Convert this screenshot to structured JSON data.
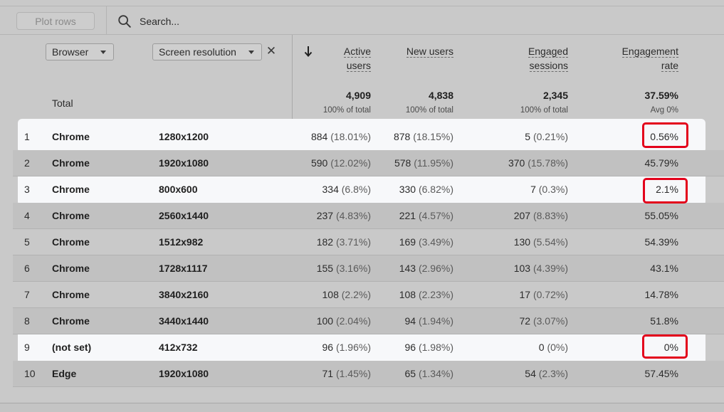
{
  "toolbar": {
    "plot_rows_label": "Plot rows",
    "search_placeholder": "Search..."
  },
  "dimensions": {
    "primary": "Browser",
    "secondary": "Screen resolution",
    "remove_icon": "close-icon"
  },
  "metrics_headers": {
    "active_users": [
      "Active",
      "users"
    ],
    "new_users": [
      "New users"
    ],
    "engaged_sessions": [
      "Engaged",
      "sessions"
    ],
    "engagement_rate": [
      "Engagement",
      "rate"
    ]
  },
  "totals": {
    "label": "Total",
    "active_users": "4,909",
    "active_users_sub": "100% of total",
    "new_users": "4,838",
    "new_users_sub": "100% of total",
    "engaged_sessions": "2,345",
    "engaged_sessions_sub": "100% of total",
    "engagement_rate": "37.59%",
    "engagement_rate_sub": "Avg 0%"
  },
  "rows": [
    {
      "idx": "1",
      "browser": "Chrome",
      "res": "1280x1200",
      "au": "884",
      "au_pct": "(18.01%)",
      "nu": "878",
      "nu_pct": "(18.15%)",
      "es": "5",
      "es_pct": "(0.21%)",
      "er": "0.56%"
    },
    {
      "idx": "2",
      "browser": "Chrome",
      "res": "1920x1080",
      "au": "590",
      "au_pct": "(12.02%)",
      "nu": "578",
      "nu_pct": "(11.95%)",
      "es": "370",
      "es_pct": "(15.78%)",
      "er": "45.79%"
    },
    {
      "idx": "3",
      "browser": "Chrome",
      "res": "800x600",
      "au": "334",
      "au_pct": "(6.8%)",
      "nu": "330",
      "nu_pct": "(6.82%)",
      "es": "7",
      "es_pct": "(0.3%)",
      "er": "2.1%"
    },
    {
      "idx": "4",
      "browser": "Chrome",
      "res": "2560x1440",
      "au": "237",
      "au_pct": "(4.83%)",
      "nu": "221",
      "nu_pct": "(4.57%)",
      "es": "207",
      "es_pct": "(8.83%)",
      "er": "55.05%"
    },
    {
      "idx": "5",
      "browser": "Chrome",
      "res": "1512x982",
      "au": "182",
      "au_pct": "(3.71%)",
      "nu": "169",
      "nu_pct": "(3.49%)",
      "es": "130",
      "es_pct": "(5.54%)",
      "er": "54.39%"
    },
    {
      "idx": "6",
      "browser": "Chrome",
      "res": "1728x1117",
      "au": "155",
      "au_pct": "(3.16%)",
      "nu": "143",
      "nu_pct": "(2.96%)",
      "es": "103",
      "es_pct": "(4.39%)",
      "er": "43.1%"
    },
    {
      "idx": "7",
      "browser": "Chrome",
      "res": "3840x2160",
      "au": "108",
      "au_pct": "(2.2%)",
      "nu": "108",
      "nu_pct": "(2.23%)",
      "es": "17",
      "es_pct": "(0.72%)",
      "er": "14.78%"
    },
    {
      "idx": "8",
      "browser": "Chrome",
      "res": "3440x1440",
      "au": "100",
      "au_pct": "(2.04%)",
      "nu": "94",
      "nu_pct": "(1.94%)",
      "es": "72",
      "es_pct": "(3.07%)",
      "er": "51.8%"
    },
    {
      "idx": "9",
      "browser": "(not set)",
      "res": "412x732",
      "au": "96",
      "au_pct": "(1.96%)",
      "nu": "96",
      "nu_pct": "(1.98%)",
      "es": "0",
      "es_pct": "(0%)",
      "er": "0%"
    },
    {
      "idx": "10",
      "browser": "Edge",
      "res": "1920x1080",
      "au": "71",
      "au_pct": "(1.45%)",
      "nu": "65",
      "nu_pct": "(1.34%)",
      "es": "54",
      "es_pct": "(2.3%)",
      "er": "57.45%"
    }
  ],
  "highlighted_rows": [
    "1",
    "3",
    "9"
  ],
  "colors": {
    "highlight_outline": "#e3001b",
    "highlight_row_bg": "#f7f8fa",
    "dimmed_bg": "#c9c9c9"
  },
  "icons": {
    "search": "search-icon",
    "sort": "sort-down-arrow-icon",
    "dropdown": "chevron-down-icon"
  }
}
